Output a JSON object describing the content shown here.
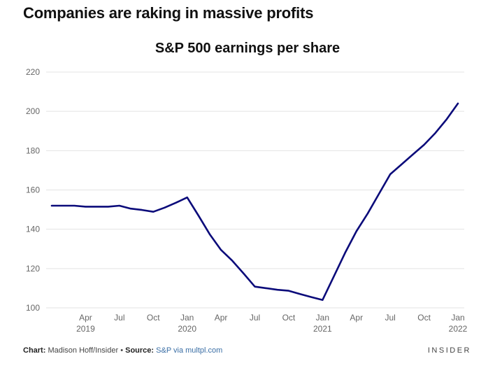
{
  "headline": "Companies are raking in massive profits",
  "footer": {
    "chart_label": "Chart:",
    "chart_credit": "Madison Hoff/Insider",
    "separator": "•",
    "source_label": "Source:",
    "source_value": "S&P via multpl.com"
  },
  "brand": "INSIDER",
  "colors": {
    "line": "#0b0b7a",
    "grid": "#e3e3e3",
    "axis_text": "#666666"
  },
  "chart_data": {
    "type": "line",
    "title": "S&P 500 earnings per share",
    "xlabel": "",
    "ylabel": "",
    "ylim": [
      100,
      220
    ],
    "yticks": [
      100,
      120,
      140,
      160,
      180,
      200,
      220
    ],
    "grid": true,
    "xtick_labels": [
      {
        "month": "Apr",
        "year": "2019"
      },
      {
        "month": "Jul",
        "year": ""
      },
      {
        "month": "Oct",
        "year": ""
      },
      {
        "month": "Jan",
        "year": "2020"
      },
      {
        "month": "Apr",
        "year": ""
      },
      {
        "month": "Jul",
        "year": ""
      },
      {
        "month": "Oct",
        "year": ""
      },
      {
        "month": "Jan",
        "year": "2021"
      },
      {
        "month": "Apr",
        "year": ""
      },
      {
        "month": "Jul",
        "year": ""
      },
      {
        "month": "Oct",
        "year": ""
      },
      {
        "month": "Jan",
        "year": "2022"
      }
    ],
    "series": [
      {
        "x": [
          "2019-01",
          "2019-02",
          "2019-03",
          "2019-04",
          "2019-05",
          "2019-06",
          "2019-07",
          "2019-08",
          "2019-09",
          "2019-10",
          "2019-11",
          "2019-12",
          "2020-01",
          "2020-02",
          "2020-03",
          "2020-04",
          "2020-05",
          "2020-06",
          "2020-07",
          "2020-08",
          "2020-09",
          "2020-10",
          "2020-11",
          "2020-12",
          "2021-01",
          "2021-02",
          "2021-03",
          "2021-04",
          "2021-05",
          "2021-06",
          "2021-07",
          "2021-08",
          "2021-09",
          "2021-10",
          "2021-11",
          "2021-12",
          "2022-01"
        ],
        "values": [
          152,
          152,
          152,
          151.5,
          151.5,
          151.5,
          152,
          150.5,
          149.8,
          148.9,
          151,
          153.5,
          156.2,
          147,
          137.5,
          129.5,
          124,
          117.5,
          110.8,
          110,
          109.2,
          108.7,
          107,
          105.5,
          104,
          116,
          128,
          139,
          148,
          158,
          168,
          173,
          178,
          183,
          189,
          196,
          204
        ]
      }
    ]
  }
}
